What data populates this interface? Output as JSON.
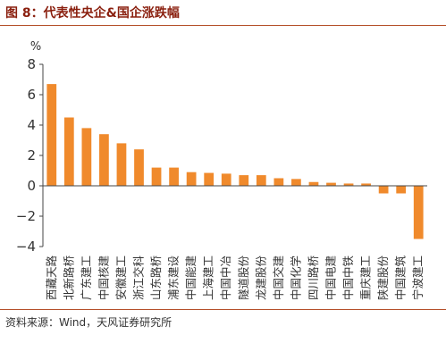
{
  "figure": {
    "title": "图 8：代表性央企&国企涨跌幅",
    "source": "资料来源：Wind，天风证券研究所"
  },
  "chart_data": {
    "type": "bar",
    "categories": [
      "西藏天路",
      "北新路桥",
      "广东建工",
      "中国核建",
      "安徽建工",
      "浙江交科",
      "山东路桥",
      "浦东建设",
      "中国能建",
      "上海建工",
      "中国中冶",
      "隧道股份",
      "龙建股份",
      "中国交建",
      "中国化学",
      "四川路桥",
      "中国电建",
      "中国中铁",
      "重庆建工",
      "陕建股份",
      "中国建筑",
      "宁波建工"
    ],
    "values": [
      6.7,
      4.5,
      3.8,
      3.4,
      2.8,
      2.4,
      1.2,
      1.2,
      0.9,
      0.85,
      0.8,
      0.7,
      0.7,
      0.5,
      0.45,
      0.25,
      0.2,
      0.15,
      0.15,
      -0.5,
      -0.5,
      -3.5
    ],
    "unit_label": "%",
    "yticks": [
      8,
      6,
      4,
      2,
      0,
      -2,
      -4
    ],
    "ylim": [
      -4,
      8
    ],
    "grid": false,
    "colors": {
      "bar": "#f08a2c",
      "axis": "#444444"
    }
  }
}
